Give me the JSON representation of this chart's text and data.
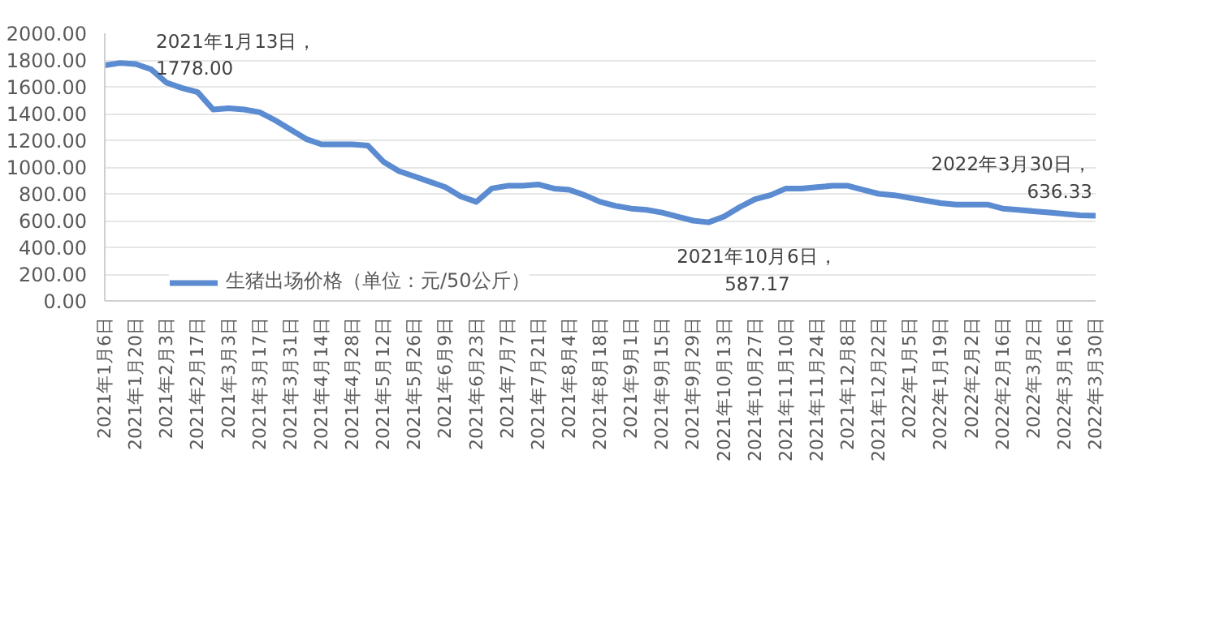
{
  "chart_data": {
    "type": "line",
    "x": [
      "2021-01-06",
      "2021-01-13",
      "2021-01-20",
      "2021-01-27",
      "2021-02-03",
      "2021-02-10",
      "2021-02-17",
      "2021-02-24",
      "2021-03-03",
      "2021-03-10",
      "2021-03-17",
      "2021-03-24",
      "2021-03-31",
      "2021-04-07",
      "2021-04-14",
      "2021-04-21",
      "2021-04-28",
      "2021-05-05",
      "2021-05-12",
      "2021-05-19",
      "2021-05-26",
      "2021-06-02",
      "2021-06-09",
      "2021-06-16",
      "2021-06-23",
      "2021-06-30",
      "2021-07-07",
      "2021-07-14",
      "2021-07-21",
      "2021-07-28",
      "2021-08-04",
      "2021-08-11",
      "2021-08-18",
      "2021-08-25",
      "2021-09-01",
      "2021-09-08",
      "2021-09-15",
      "2021-09-22",
      "2021-09-29",
      "2021-10-06",
      "2021-10-13",
      "2021-10-20",
      "2021-10-27",
      "2021-11-03",
      "2021-11-10",
      "2021-11-17",
      "2021-11-24",
      "2021-12-01",
      "2021-12-08",
      "2021-12-15",
      "2021-12-22",
      "2021-12-29",
      "2022-01-05",
      "2022-01-12",
      "2022-01-19",
      "2022-01-26",
      "2022-02-02",
      "2022-02-09",
      "2022-02-16",
      "2022-02-23",
      "2022-03-02",
      "2022-03-09",
      "2022-03-16",
      "2022-03-23",
      "2022-03-30"
    ],
    "series": [
      {
        "name": "生猪出场价格（单位：元/50公斤）",
        "color": "#5b8bd0",
        "values": [
          1760,
          1778,
          1770,
          1730,
          1630,
          1590,
          1560,
          1430,
          1440,
          1430,
          1410,
          1350,
          1280,
          1210,
          1170,
          1170,
          1170,
          1160,
          1040,
          970,
          930,
          890,
          850,
          780,
          740,
          840,
          860,
          860,
          870,
          840,
          830,
          790,
          740,
          710,
          690,
          680,
          660,
          630,
          600,
          587.17,
          630,
          700,
          760,
          790,
          840,
          840,
          850,
          860,
          860,
          830,
          800,
          790,
          770,
          750,
          730,
          720,
          720,
          720,
          690,
          680,
          670,
          660,
          650,
          640,
          636.33
        ]
      }
    ],
    "xlim": [
      "2021-01-06",
      "2022-03-30"
    ],
    "xticks": [
      {
        "value": "2021-01-06",
        "label": "2021年1月6日"
      },
      {
        "value": "2021-01-20",
        "label": "2021年1月20日"
      },
      {
        "value": "2021-02-03",
        "label": "2021年2月3日"
      },
      {
        "value": "2021-02-17",
        "label": "2021年2月17日"
      },
      {
        "value": "2021-03-03",
        "label": "2021年3月3日"
      },
      {
        "value": "2021-03-17",
        "label": "2021年3月17日"
      },
      {
        "value": "2021-03-31",
        "label": "2021年3月31日"
      },
      {
        "value": "2021-04-14",
        "label": "2021年4月14日"
      },
      {
        "value": "2021-04-28",
        "label": "2021年4月28日"
      },
      {
        "value": "2021-05-12",
        "label": "2021年5月12日"
      },
      {
        "value": "2021-05-26",
        "label": "2021年5月26日"
      },
      {
        "value": "2021-06-09",
        "label": "2021年6月9日"
      },
      {
        "value": "2021-06-23",
        "label": "2021年6月23日"
      },
      {
        "value": "2021-07-07",
        "label": "2021年7月7日"
      },
      {
        "value": "2021-07-21",
        "label": "2021年7月21日"
      },
      {
        "value": "2021-08-04",
        "label": "2021年8月4日"
      },
      {
        "value": "2021-08-18",
        "label": "2021年8月18日"
      },
      {
        "value": "2021-09-01",
        "label": "2021年9月1日"
      },
      {
        "value": "2021-09-15",
        "label": "2021年9月15日"
      },
      {
        "value": "2021-09-29",
        "label": "2021年9月29日"
      },
      {
        "value": "2021-10-13",
        "label": "2021年10月13日"
      },
      {
        "value": "2021-10-27",
        "label": "2021年10月27日"
      },
      {
        "value": "2021-11-10",
        "label": "2021年11月10日"
      },
      {
        "value": "2021-11-24",
        "label": "2021年11月24日"
      },
      {
        "value": "2021-12-08",
        "label": "2021年12月8日"
      },
      {
        "value": "2021-12-22",
        "label": "2021年12月22日"
      },
      {
        "value": "2022-01-05",
        "label": "2022年1月5日"
      },
      {
        "value": "2022-01-19",
        "label": "2022年1月19日"
      },
      {
        "value": "2022-02-02",
        "label": "2022年2月2日"
      },
      {
        "value": "2022-02-16",
        "label": "2022年2月16日"
      },
      {
        "value": "2022-03-02",
        "label": "2022年3月2日"
      },
      {
        "value": "2022-03-16",
        "label": "2022年3月16日"
      },
      {
        "value": "2022-03-30",
        "label": "2022年3月30日"
      }
    ],
    "ylim": [
      0,
      2000
    ],
    "yticks": [
      {
        "value": 0,
        "label": "0.00"
      },
      {
        "value": 200,
        "label": "200.00"
      },
      {
        "value": 400,
        "label": "400.00"
      },
      {
        "value": 600,
        "label": "600.00"
      },
      {
        "value": 800,
        "label": "800.00"
      },
      {
        "value": 1000,
        "label": "1000.00"
      },
      {
        "value": 1200,
        "label": "1200.00"
      },
      {
        "value": 1400,
        "label": "1400.00"
      },
      {
        "value": 1600,
        "label": "1600.00"
      },
      {
        "value": 1800,
        "label": "1800.00"
      },
      {
        "value": 2000,
        "label": "2000.00"
      }
    ],
    "annotations": [
      {
        "text": "2021年1月13日，\n1778.00",
        "x": "2021-01-13",
        "y": 1778
      },
      {
        "text": "2021年10月6日，\n587.17",
        "x": "2021-10-06",
        "y": 587.17
      },
      {
        "text": "2022年3月30日，\n636.33",
        "x": "2022-03-30",
        "y": 636.33
      }
    ],
    "grid": "y",
    "legend": "bottom",
    "marker": "none",
    "line_style": "solid"
  }
}
